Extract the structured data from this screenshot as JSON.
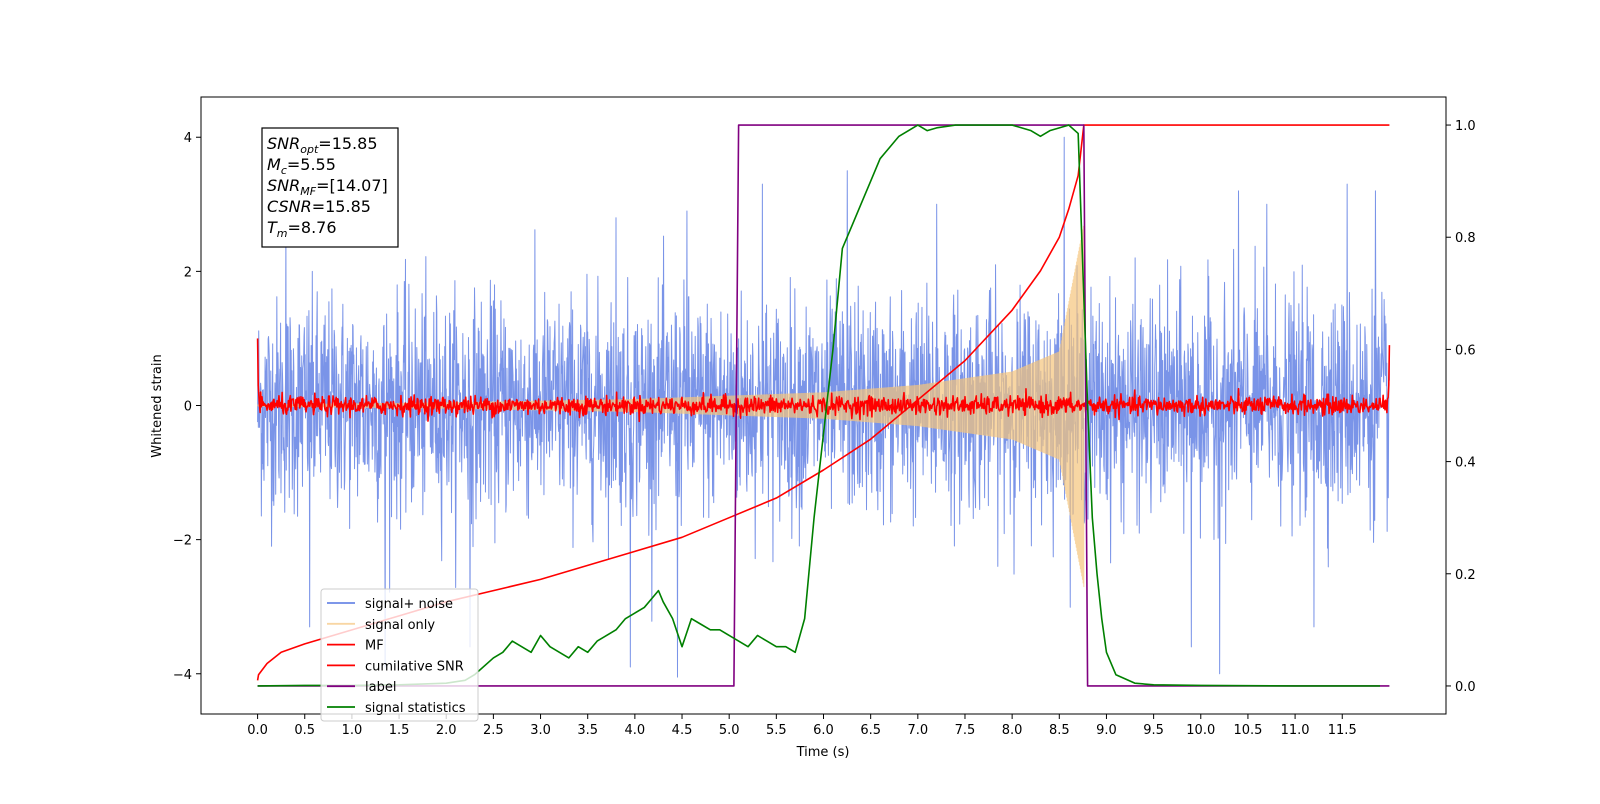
{
  "chart_data": {
    "type": "line",
    "xlabel": "Time (s)",
    "ylabel": "Whitened strain",
    "xlim": [
      -0.6,
      12.6
    ],
    "ylim": [
      -4.6,
      4.6
    ],
    "ylim_right": [
      -0.05,
      1.05
    ],
    "x_ticks": [
      "0.0",
      "0.5",
      "1.0",
      "1.5",
      "2.0",
      "2.5",
      "3.0",
      "3.5",
      "4.0",
      "4.5",
      "5.0",
      "5.5",
      "6.0",
      "6.5",
      "7.0",
      "7.5",
      "8.0",
      "8.5",
      "9.0",
      "9.5",
      "10.0",
      "10.5",
      "11.0",
      "11.5"
    ],
    "x_tick_values": [
      0,
      0.5,
      1,
      1.5,
      2,
      2.5,
      3,
      3.5,
      4,
      4.5,
      5,
      5.5,
      6,
      6.5,
      7,
      7.5,
      8,
      8.5,
      9,
      9.5,
      10,
      10.5,
      11,
      11.5
    ],
    "y_ticks": [
      "−4",
      "−2",
      "0",
      "2",
      "4"
    ],
    "y_tick_values": [
      -4,
      -2,
      0,
      2,
      4
    ],
    "y2_ticks": [
      "0.0",
      "0.2",
      "0.4",
      "0.6",
      "0.8",
      "1.0"
    ],
    "y2_tick_values": [
      0,
      0.2,
      0.4,
      0.6,
      0.8,
      1.0
    ],
    "legend_position": "lower-left",
    "annotation": [
      {
        "main": "SNR",
        "sub": "opt",
        "value": "=15.85"
      },
      {
        "main": "M",
        "sub": "c",
        "value": "=5.55"
      },
      {
        "main": "SNR",
        "sub": "MF",
        "value": "=[14.07]"
      },
      {
        "main": "CSNR",
        "sub": "",
        "value": "=15.85"
      },
      {
        "main": "T",
        "sub": "m",
        "value": "=8.76"
      }
    ],
    "series": [
      {
        "name": "signal+ noise",
        "color": "#6b88e6",
        "axis": "left",
        "kind": "noise",
        "t_start": 0.0,
        "t_end": 12.0,
        "amplitude": 0.8,
        "peaks": [
          [
            0.3,
            2.6
          ],
          [
            0.55,
            -3.3
          ],
          [
            1.35,
            -3.9
          ],
          [
            2.25,
            -3.6
          ],
          [
            3.8,
            2.8
          ],
          [
            3.95,
            -3.9
          ],
          [
            4.45,
            -4.05
          ],
          [
            4.55,
            2.9
          ],
          [
            5.35,
            3.3
          ],
          [
            6.25,
            3.5
          ],
          [
            7.2,
            3.0
          ],
          [
            8.55,
            4.0
          ],
          [
            9.9,
            -3.6
          ],
          [
            10.2,
            -4.0
          ],
          [
            10.4,
            3.2
          ],
          [
            10.7,
            3.0
          ],
          [
            11.2,
            -3.3
          ],
          [
            11.55,
            3.3
          ],
          [
            11.85,
            3.2
          ]
        ]
      },
      {
        "name": "signal only",
        "color": "#f5c57c",
        "axis": "left",
        "kind": "chirp",
        "t_start": 0.0,
        "t_end": 8.76,
        "envelope": [
          [
            0.0,
            0.01
          ],
          [
            2.0,
            0.04
          ],
          [
            4.0,
            0.09
          ],
          [
            6.0,
            0.19
          ],
          [
            7.0,
            0.3
          ],
          [
            8.0,
            0.5
          ],
          [
            8.5,
            0.8
          ],
          [
            8.76,
            2.7
          ]
        ]
      },
      {
        "name": "MF",
        "color": "#ff0000",
        "axis": "left",
        "kind": "mf",
        "t_start": 0.0,
        "t_end": 12.0,
        "amplitude": 0.07,
        "edge_start": 1.0,
        "edge_end": 0.9
      },
      {
        "name": "cumilative SNR",
        "color": "#ff0000",
        "axis": "right",
        "x": [
          0.0,
          0.01,
          0.1,
          0.25,
          0.5,
          1.0,
          1.5,
          2.0,
          2.5,
          3.0,
          3.5,
          4.0,
          4.5,
          5.0,
          5.5,
          6.0,
          6.5,
          7.0,
          7.5,
          8.0,
          8.3,
          8.5,
          8.6,
          8.7,
          8.76,
          9.0,
          12.0
        ],
        "y": [
          0.01,
          0.02,
          0.04,
          0.06,
          0.075,
          0.1,
          0.125,
          0.15,
          0.17,
          0.19,
          0.215,
          0.24,
          0.265,
          0.3,
          0.335,
          0.385,
          0.44,
          0.51,
          0.58,
          0.67,
          0.74,
          0.8,
          0.85,
          0.91,
          1.0,
          1.0,
          1.0
        ]
      },
      {
        "name": "label",
        "color": "#800080",
        "axis": "right",
        "x": [
          0.0,
          5.05,
          5.1,
          8.76,
          8.8,
          12.0
        ],
        "y": [
          0.0,
          0.0,
          1.0,
          1.0,
          0.0,
          0.0
        ]
      },
      {
        "name": "signal statistics",
        "color": "#008000",
        "axis": "right",
        "x": [
          0.0,
          0.5,
          1.0,
          1.5,
          2.0,
          2.2,
          2.3,
          2.5,
          2.6,
          2.7,
          2.8,
          2.9,
          3.0,
          3.1,
          3.2,
          3.3,
          3.4,
          3.5,
          3.6,
          3.7,
          3.8,
          3.9,
          4.0,
          4.1,
          4.2,
          4.25,
          4.3,
          4.4,
          4.5,
          4.6,
          4.7,
          4.8,
          4.9,
          5.0,
          5.1,
          5.2,
          5.3,
          5.4,
          5.5,
          5.6,
          5.7,
          5.8,
          5.9,
          6.0,
          6.1,
          6.2,
          6.3,
          6.4,
          6.5,
          6.6,
          6.7,
          6.8,
          6.9,
          7.0,
          7.1,
          7.2,
          7.4,
          7.6,
          8.0,
          8.2,
          8.3,
          8.4,
          8.5,
          8.6,
          8.7,
          8.8,
          8.85,
          8.9,
          8.95,
          9.0,
          9.1,
          9.3,
          9.5,
          10.0,
          11.0,
          11.9
        ],
        "y": [
          0.0,
          0.001,
          0.001,
          0.002,
          0.005,
          0.01,
          0.02,
          0.05,
          0.06,
          0.08,
          0.07,
          0.06,
          0.09,
          0.07,
          0.06,
          0.05,
          0.07,
          0.06,
          0.08,
          0.09,
          0.1,
          0.12,
          0.13,
          0.14,
          0.16,
          0.17,
          0.15,
          0.12,
          0.07,
          0.12,
          0.11,
          0.1,
          0.1,
          0.09,
          0.08,
          0.07,
          0.09,
          0.08,
          0.07,
          0.07,
          0.06,
          0.12,
          0.3,
          0.45,
          0.6,
          0.78,
          0.82,
          0.86,
          0.9,
          0.94,
          0.96,
          0.98,
          0.99,
          1.0,
          0.99,
          0.995,
          1.0,
          1.0,
          1.0,
          0.99,
          0.98,
          0.99,
          0.995,
          1.0,
          0.985,
          0.5,
          0.3,
          0.2,
          0.12,
          0.06,
          0.02,
          0.005,
          0.002,
          0.001,
          0.0,
          0.0
        ]
      }
    ]
  }
}
